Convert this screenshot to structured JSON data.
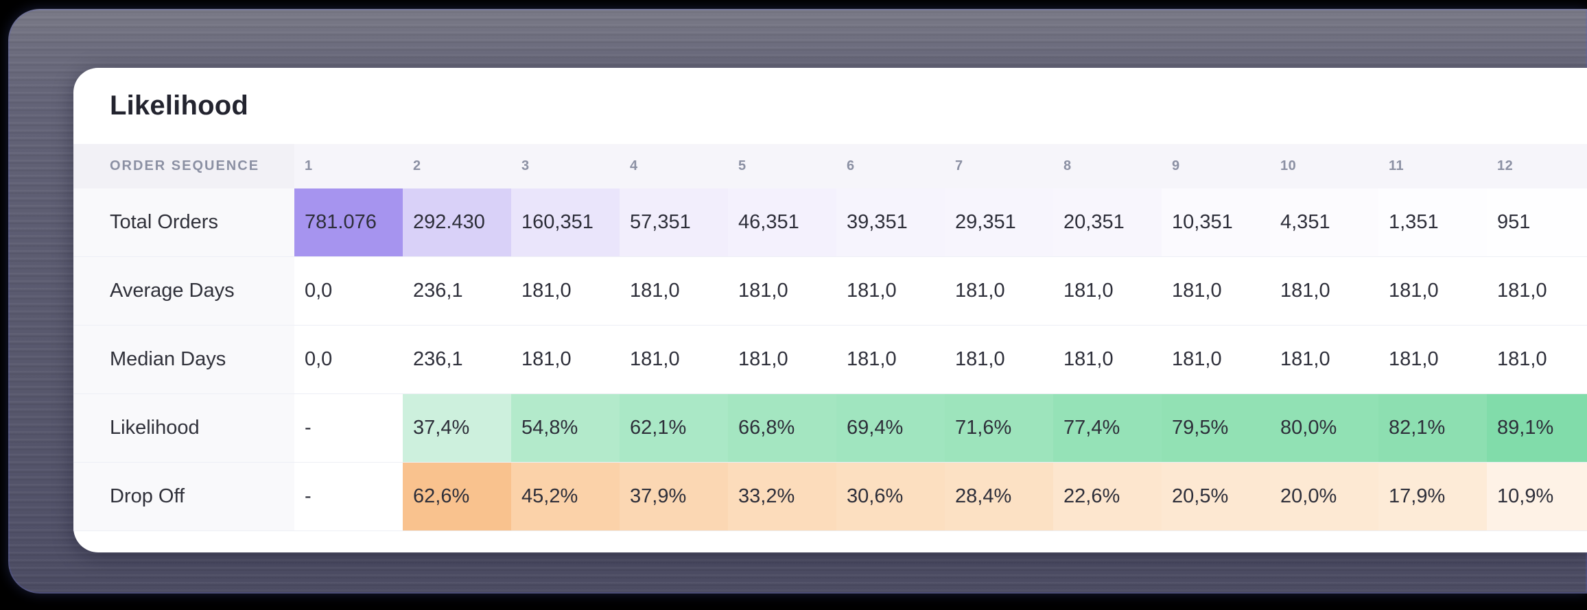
{
  "card": {
    "title": "Likelihood"
  },
  "table": {
    "header": {
      "label": "ORDER SEQUENCE",
      "columns": [
        "1",
        "2",
        "3",
        "4",
        "5",
        "6",
        "7",
        "8",
        "9",
        "10",
        "11",
        "12"
      ]
    },
    "rows": [
      {
        "label": "Total Orders",
        "values": [
          "781.076",
          "292.430",
          "160,351",
          "57,351",
          "46,351",
          "39,351",
          "29,351",
          "20,351",
          "10,351",
          "4,351",
          "1,351",
          "951"
        ],
        "cell_colors": [
          "#a694ef",
          "#d9d1f8",
          "#eae5fb",
          "#f2eefc",
          "#f4f1fd",
          "#f6f4fd",
          "#f7f5fd",
          "#f8f6fd",
          "#fbfafe",
          "#fcfbfe",
          "#fdfdff",
          "#fefeff"
        ]
      },
      {
        "label": "Average Days",
        "values": [
          "0,0",
          "236,1",
          "181,0",
          "181,0",
          "181,0",
          "181,0",
          "181,0",
          "181,0",
          "181,0",
          "181,0",
          "181,0",
          "181,0"
        ],
        "cell_colors": [
          null,
          null,
          null,
          null,
          null,
          null,
          null,
          null,
          null,
          null,
          null,
          null
        ]
      },
      {
        "label": "Median Days",
        "values": [
          "0,0",
          "236,1",
          "181,0",
          "181,0",
          "181,0",
          "181,0",
          "181,0",
          "181,0",
          "181,0",
          "181,0",
          "181,0",
          "181,0"
        ],
        "cell_colors": [
          null,
          null,
          null,
          null,
          null,
          null,
          null,
          null,
          null,
          null,
          null,
          null
        ]
      },
      {
        "label": "Likelihood",
        "values": [
          "-",
          "37,4%",
          "54,8%",
          "62,1%",
          "66,8%",
          "69,4%",
          "71,6%",
          "77,4%",
          "79,5%",
          "80,0%",
          "82,1%",
          "89,1%"
        ],
        "cell_colors": [
          null,
          "#cdf0dd",
          "#b3eacb",
          "#aae8c6",
          "#a4e6c1",
          "#a0e5bf",
          "#9de4bc",
          "#95e2b7",
          "#92e1b4",
          "#91e1b4",
          "#8ddfb1",
          "#81dcaa"
        ]
      },
      {
        "label": "Drop Off",
        "values": [
          "-",
          "62,6%",
          "45,2%",
          "37,9%",
          "33,2%",
          "30,6%",
          "28,4%",
          "22,6%",
          "20,5%",
          "20,0%",
          "17,9%",
          "10,9%"
        ],
        "cell_colors": [
          null,
          "#f9c28e",
          "#fbd2a9",
          "#fbd7b3",
          "#fcdcbb",
          "#fcdfc0",
          "#fce1c4",
          "#fde6ce",
          "#fde8d2",
          "#fde9d3",
          "#fdebd7",
          "#fef2e6"
        ]
      }
    ]
  },
  "colors": {
    "heat_high_purple": "#a694ef",
    "heat_green": "#81dcaa",
    "heat_orange": "#f9c28e",
    "frame_slate": "#5c5c71",
    "outer_background": "#000000",
    "header_text": "#8b90a3",
    "body_text": "#2d2e39"
  }
}
